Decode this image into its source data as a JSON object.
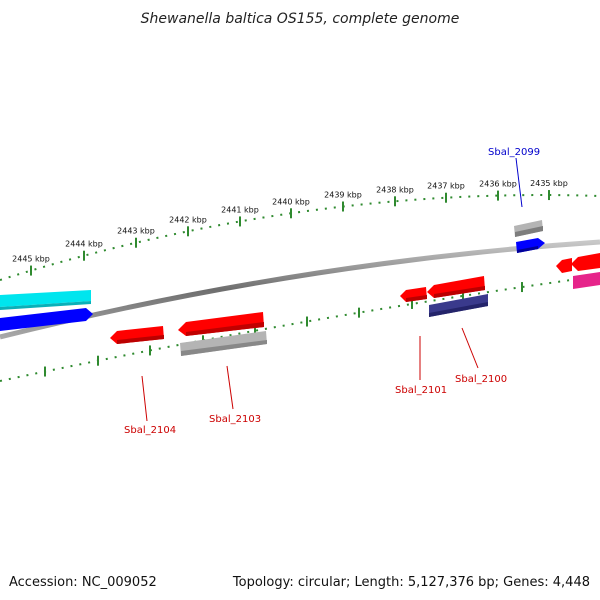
{
  "title": "Shewanella baltica OS155, complete genome",
  "footer": {
    "accession": "Accession: NC_009052",
    "summary": "Topology: circular; Length: 5,127,376 bp; Genes: 4,448"
  },
  "colors": {
    "backbone": "#8a8a8a",
    "ticks": "#2f8a2f",
    "gene_red": "#ff0000",
    "gene_gray": "#b4b4b4",
    "gene_blue": "#0000ff",
    "gene_cyan": "#00e5ee",
    "gene_navy": "#3a3a8c",
    "gene_magenta": "#e6248a",
    "label_red": "#cc0000",
    "label_blue": "#0000cc"
  },
  "ticks": [
    "2435 kbp",
    "2436 kbp",
    "2437 kbp",
    "2438 kbp",
    "2439 kbp",
    "2440 kbp",
    "2441 kbp",
    "2442 kbp",
    "2443 kbp",
    "2444 kbp",
    "2445 kbp"
  ],
  "gene_labels": [
    {
      "id": "g2099",
      "text": "Sbal_2099",
      "color": "#0000cc"
    },
    {
      "id": "g2100",
      "text": "Sbal_2100",
      "color": "#cc0000"
    },
    {
      "id": "g2101",
      "text": "Sbal_2101",
      "color": "#cc0000"
    },
    {
      "id": "g2103",
      "text": "Sbal_2103",
      "color": "#cc0000"
    },
    {
      "id": "g2104",
      "text": "Sbal_2104",
      "color": "#cc0000"
    }
  ]
}
